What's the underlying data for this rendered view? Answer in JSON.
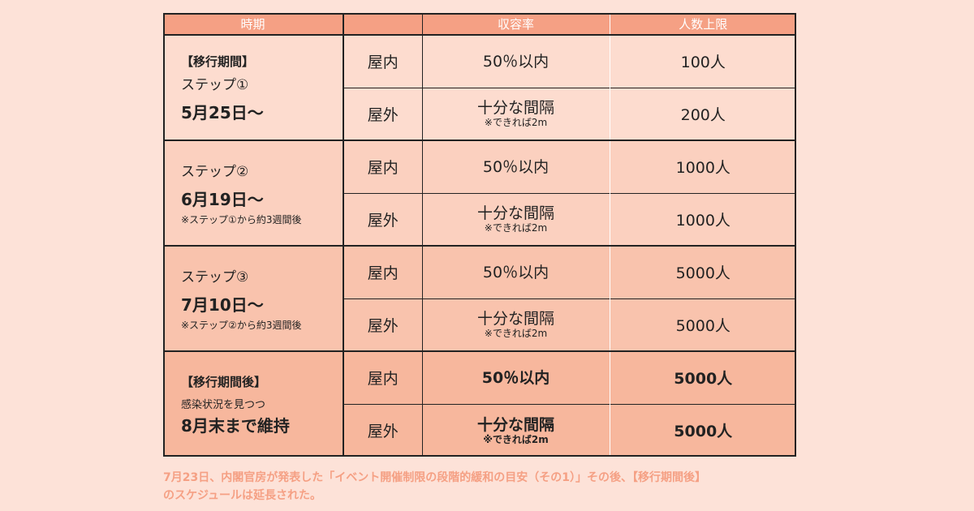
{
  "table": {
    "headers": {
      "period": "時期",
      "location": "",
      "capacity": "収容率",
      "limit": "人数上限"
    },
    "groups": [
      {
        "tag": "【移行期間】",
        "step": "ステップ①",
        "condition": "",
        "date": "5月25日〜",
        "note": "",
        "rows": [
          {
            "location": "屋内",
            "capacity": "50％以内",
            "capacity_note": "",
            "limit": "100人"
          },
          {
            "location": "屋外",
            "capacity": "十分な間隔",
            "capacity_note": "※できれば2m",
            "limit": "200人"
          }
        ]
      },
      {
        "tag": "",
        "step": "ステップ②",
        "condition": "",
        "date": "6月19日〜",
        "note": "※ステップ①から約3週間後",
        "rows": [
          {
            "location": "屋内",
            "capacity": "50％以内",
            "capacity_note": "",
            "limit": "1000人"
          },
          {
            "location": "屋外",
            "capacity": "十分な間隔",
            "capacity_note": "※できれば2m",
            "limit": "1000人"
          }
        ]
      },
      {
        "tag": "",
        "step": "ステップ③",
        "condition": "",
        "date": "7月10日〜",
        "note": "※ステップ②から約3週間後",
        "rows": [
          {
            "location": "屋内",
            "capacity": "50％以内",
            "capacity_note": "",
            "limit": "5000人"
          },
          {
            "location": "屋外",
            "capacity": "十分な間隔",
            "capacity_note": "※できれば2m",
            "limit": "5000人"
          }
        ]
      },
      {
        "tag": "【移行期間後】",
        "step": "",
        "condition": "感染状況を見つつ",
        "date": "8月末まで維持",
        "note": "",
        "rows": [
          {
            "location": "屋内",
            "capacity": "50％以内",
            "capacity_note": "",
            "limit": "5000人"
          },
          {
            "location": "屋外",
            "capacity": "十分な間隔",
            "capacity_note": "※できれば2m",
            "limit": "5000人"
          }
        ]
      }
    ]
  },
  "footer": {
    "line1": "7月23日、内閣官房が発表した「イベント開催制限の段階的緩和の目安（その1）」その後、【移行期間後】",
    "line2": "のスケジュールは延長された。"
  }
}
